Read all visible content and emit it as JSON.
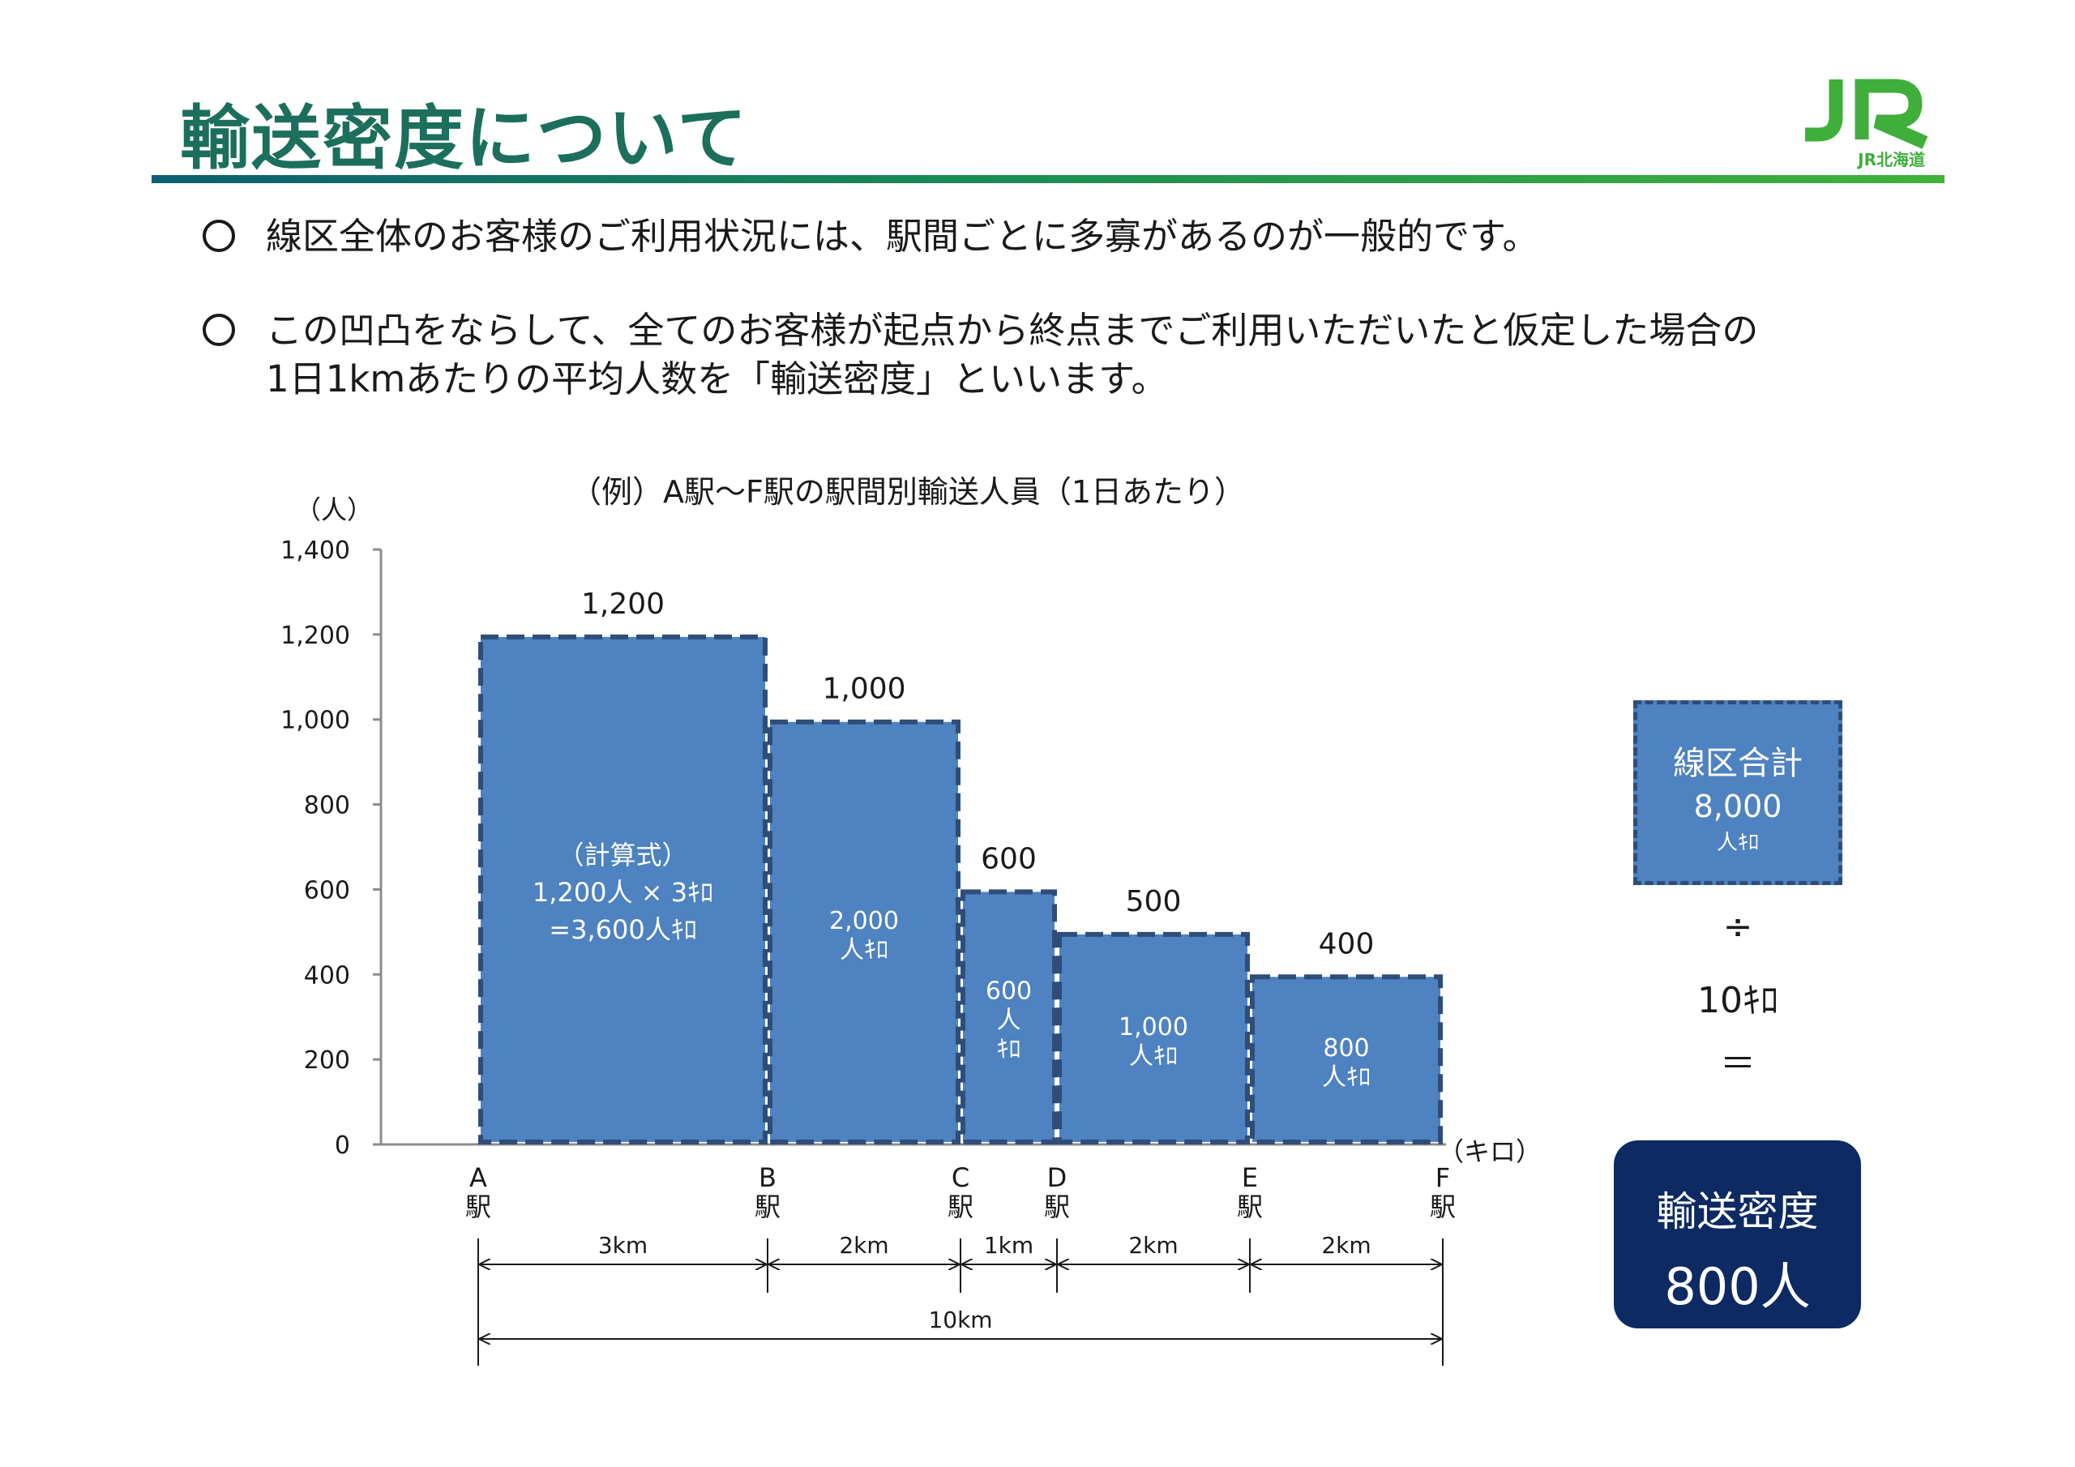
{
  "page": {
    "title": "輸送密度について",
    "logo_text": "JR北海道",
    "bullet1": "線区全体のお客様のご利用状況には、駅間ごとに多寡があるのが一般的です。",
    "bullet2_line1": "この凹凸をならして、全てのお客様が起点から終点までご利用いただいたと仮定した場合の",
    "bullet2_line2": "1日1kmあたりの平均人数を「輸送密度」といいます。"
  },
  "colors": {
    "title": "#1b6f5c",
    "bar_fill": "#4e82c0",
    "bar_border": "#2f4d78",
    "result_bg": "#0d2a63",
    "rule_start": "#0c5f70",
    "rule_end": "#3fb23a"
  },
  "chart_data": {
    "type": "bar",
    "title": "（例）A駅～F駅の駅間別輸送人員（1日あたり）",
    "ylabel": "（人）",
    "xlabel": "（キロ）",
    "ylim": [
      0,
      1400
    ],
    "yticks": [
      "0",
      "200",
      "400",
      "600",
      "800",
      "1,000",
      "1,200",
      "1,400"
    ],
    "ytick_values": [
      0,
      200,
      400,
      600,
      800,
      1000,
      1200,
      1400
    ],
    "stations": [
      {
        "letter": "A",
        "kanji": "駅",
        "km": 0
      },
      {
        "letter": "B",
        "kanji": "駅",
        "km": 3
      },
      {
        "letter": "C",
        "kanji": "駅",
        "km": 5
      },
      {
        "letter": "D",
        "kanji": "駅",
        "km": 6
      },
      {
        "letter": "E",
        "kanji": "駅",
        "km": 8
      },
      {
        "letter": "F",
        "kanji": "駅",
        "km": 10
      }
    ],
    "segments": [
      {
        "from": "A",
        "to": "B",
        "distance_km": 3,
        "passengers": 1200,
        "value_label": "1,200",
        "distance_label": "3km",
        "inner_lines": [
          "（計算式）",
          "1,200人 × 3ｷﾛ",
          "=3,600人ｷﾛ"
        ]
      },
      {
        "from": "B",
        "to": "C",
        "distance_km": 2,
        "passengers": 1000,
        "value_label": "1,000",
        "distance_label": "2km",
        "inner_lines": [
          "2,000",
          "人ｷﾛ"
        ]
      },
      {
        "from": "C",
        "to": "D",
        "distance_km": 1,
        "passengers": 600,
        "value_label": "600",
        "distance_label": "1km",
        "inner_lines": [
          "600",
          "人",
          "ｷﾛ"
        ]
      },
      {
        "from": "D",
        "to": "E",
        "distance_km": 2,
        "passengers": 500,
        "value_label": "500",
        "distance_label": "2km",
        "inner_lines": [
          "1,000",
          "人ｷﾛ"
        ]
      },
      {
        "from": "E",
        "to": "F",
        "distance_km": 2,
        "passengers": 400,
        "value_label": "400",
        "distance_label": "2km",
        "inner_lines": [
          "800",
          "人ｷﾛ"
        ]
      }
    ],
    "total_distance_label": "10km"
  },
  "summary": {
    "box_line1": "線区合計",
    "box_line2": "8,000",
    "box_line3": "人ｷﾛ",
    "divide": "÷",
    "distance": "10ｷﾛ",
    "equals": "＝",
    "result_label": "輸送密度",
    "result_value": "800人"
  }
}
